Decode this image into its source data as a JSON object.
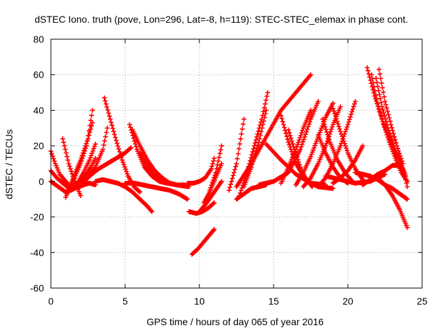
{
  "chart_data": {
    "type": "scatter",
    "title": "dSTEC Iono. truth (pove, Lon=296, Lat=-8, h=119): STEC-STEC_elemax in phase cont.",
    "xlabel": "GPS time / hours of day 065 of year 2016",
    "ylabel": "dSTEC  / TECUs",
    "xlim": [
      0,
      25
    ],
    "ylim": [
      -60,
      80
    ],
    "xticks": [
      0,
      5,
      10,
      15,
      20,
      25
    ],
    "yticks": [
      -60,
      -40,
      -20,
      0,
      20,
      40,
      60,
      80
    ],
    "grid": true,
    "legend": "none",
    "marker": "plus",
    "series_color": "#ff0000",
    "series": [
      {
        "x": [
          0.0,
          0.3,
          0.6,
          1.0,
          1.2
        ],
        "y": [
          17,
          10,
          4,
          0,
          -2
        ]
      },
      {
        "x": [
          0.0,
          0.4,
          0.8,
          1.1,
          1.3
        ],
        "y": [
          6,
          2,
          -1,
          -3,
          -5
        ]
      },
      {
        "x": [
          0.0,
          0.5,
          1.0,
          1.6,
          2.2,
          2.6,
          3.0
        ],
        "y": [
          0,
          -3,
          -6,
          -4,
          -2,
          -1,
          -2
        ]
      },
      {
        "x": [
          0.8,
          1.2,
          1.6,
          2.0
        ],
        "y": [
          24,
          10,
          0,
          -8
        ]
      },
      {
        "x": [
          1.0,
          1.5,
          2.0,
          2.5,
          2.8
        ],
        "y": [
          -9,
          2,
          12,
          24,
          33
        ]
      },
      {
        "x": [
          1.2,
          1.6,
          2.0,
          2.4,
          2.8
        ],
        "y": [
          -6,
          2,
          10,
          20,
          40
        ]
      },
      {
        "x": [
          1.4,
          1.8,
          2.2,
          2.6,
          3.0
        ],
        "y": [
          -5,
          -1,
          5,
          12,
          21
        ]
      },
      {
        "x": [
          1.5,
          1.9,
          2.3,
          2.7,
          3.0
        ],
        "y": [
          -3,
          0,
          3,
          8,
          13
        ]
      },
      {
        "x": [
          2.0,
          2.6,
          3.2,
          3.8,
          4.4,
          5.0,
          5.4
        ],
        "y": [
          -2,
          3,
          7,
          10,
          13,
          16,
          19
        ]
      },
      {
        "x": [
          2.0,
          2.5,
          3.0,
          3.5,
          3.8
        ],
        "y": [
          -2,
          2,
          8,
          18,
          30
        ]
      },
      {
        "x": [
          3.6,
          4.0,
          4.4,
          4.8,
          5.2,
          5.6,
          6.0
        ],
        "y": [
          47,
          35,
          23,
          12,
          3,
          -3,
          -6
        ]
      },
      {
        "x": [
          3.0,
          3.5,
          4.0,
          4.5,
          5.0,
          5.5,
          6.0,
          6.5,
          6.8
        ],
        "y": [
          0,
          1,
          0,
          -1,
          -3,
          -6,
          -10,
          -14,
          -17
        ]
      },
      {
        "x": [
          5.3,
          5.8,
          6.3,
          6.8,
          7.3,
          7.8,
          8.5,
          9.3
        ],
        "y": [
          32,
          18,
          8,
          3,
          0,
          -1,
          -2,
          -3
        ]
      },
      {
        "x": [
          5.5,
          6.0,
          6.5,
          7.0,
          7.5,
          8.0,
          8.5,
          9.0
        ],
        "y": [
          29,
          20,
          12,
          6,
          2,
          -1,
          -2,
          -2
        ]
      },
      {
        "x": [
          5.0,
          5.6,
          6.2,
          6.8,
          7.4,
          8.0,
          8.6,
          9.2
        ],
        "y": [
          -1,
          -1,
          -2,
          -3,
          -4,
          -5,
          -7,
          -10
        ]
      },
      {
        "x": [
          6.0,
          6.5,
          7.0,
          7.5,
          8.0
        ],
        "y": [
          16,
          9,
          4,
          1,
          -1
        ]
      },
      {
        "x": [
          9.3,
          9.8,
          10.2,
          10.6,
          11.0
        ],
        "y": [
          -17,
          -18,
          -17,
          -15,
          -12
        ]
      },
      {
        "x": [
          9.5,
          9.9,
          10.3,
          10.7,
          11.0
        ],
        "y": [
          -41,
          -38,
          -34,
          -30,
          -27
        ]
      },
      {
        "x": [
          9.2,
          9.6,
          10.0,
          10.4,
          10.8,
          11.0
        ],
        "y": [
          -1,
          -1,
          0,
          2,
          7,
          13
        ]
      },
      {
        "x": [
          10.0,
          10.5,
          11.0,
          11.5
        ],
        "y": [
          -17,
          -12,
          -6,
          0
        ]
      },
      {
        "x": [
          10.3,
          10.7,
          11.1,
          11.5
        ],
        "y": [
          -12,
          -6,
          2,
          10
        ]
      },
      {
        "x": [
          10.7,
          11.1,
          11.5
        ],
        "y": [
          -5,
          5,
          20
        ]
      },
      {
        "x": [
          12.5,
          13.0,
          13.5,
          14.0,
          14.5
        ],
        "y": [
          -10,
          -7,
          -4,
          -3,
          -2
        ]
      },
      {
        "x": [
          12.0,
          12.5,
          13.0
        ],
        "y": [
          -5,
          10,
          35
        ]
      },
      {
        "x": [
          12.5,
          13.5,
          14.5,
          15.5,
          16.5,
          17.5
        ],
        "y": [
          -3,
          10,
          25,
          40,
          50,
          60
        ]
      },
      {
        "x": [
          12.7,
          13.2,
          13.7,
          14.2,
          14.6
        ],
        "y": [
          -8,
          5,
          20,
          35,
          50
        ]
      },
      {
        "x": [
          13.0,
          13.5,
          14.0,
          14.5
        ],
        "y": [
          -3,
          8,
          22,
          40
        ]
      },
      {
        "x": [
          14.0,
          15.0,
          16.0,
          16.8,
          17.5,
          18.0
        ],
        "y": [
          -2,
          0,
          5,
          18,
          35,
          45
        ]
      },
      {
        "x": [
          14.5,
          15.5,
          16.5,
          17.5,
          18.5
        ],
        "y": [
          21,
          12,
          4,
          -1,
          -2
        ]
      },
      {
        "x": [
          15.5,
          16.0,
          16.5,
          17.0,
          17.5,
          18.0,
          19.0
        ],
        "y": [
          37,
          22,
          10,
          3,
          -1,
          -3,
          -4
        ]
      },
      {
        "x": [
          16.0,
          16.4,
          16.8,
          17.2,
          17.6
        ],
        "y": [
          29,
          18,
          8,
          1,
          -3
        ]
      },
      {
        "x": [
          15.5,
          16.0,
          16.5,
          17.0,
          17.5
        ],
        "y": [
          -1,
          8,
          18,
          30,
          40
        ]
      },
      {
        "x": [
          16.5,
          17.0,
          17.5,
          18.0,
          18.5,
          19.0
        ],
        "y": [
          -2,
          5,
          14,
          25,
          36,
          44
        ]
      },
      {
        "x": [
          17.0,
          17.5,
          18.0,
          18.5,
          19.0,
          19.5
        ],
        "y": [
          -3,
          2,
          10,
          20,
          32,
          42
        ]
      },
      {
        "x": [
          18.0,
          18.5,
          19.0,
          19.5,
          20.0,
          20.5
        ],
        "y": [
          -3,
          2,
          10,
          20,
          32,
          45
        ]
      },
      {
        "x": [
          18.0,
          18.5,
          19.0,
          19.5,
          20.0
        ],
        "y": [
          26,
          16,
          8,
          2,
          -1
        ]
      },
      {
        "x": [
          18.3,
          18.8,
          19.3,
          19.8,
          20.3
        ],
        "y": [
          35,
          22,
          12,
          5,
          0
        ]
      },
      {
        "x": [
          19.0,
          19.5,
          20.0,
          20.5,
          21.0
        ],
        "y": [
          41,
          28,
          16,
          7,
          1
        ]
      },
      {
        "x": [
          18.5,
          19.5,
          20.5,
          21.5,
          22.0,
          22.5
        ],
        "y": [
          3,
          1,
          -1,
          0,
          2,
          4
        ]
      },
      {
        "x": [
          19.0,
          19.5,
          20.0,
          20.5,
          21.0
        ],
        "y": [
          -1,
          2,
          6,
          12,
          20
        ]
      },
      {
        "x": [
          20.5,
          21.0,
          21.5,
          22.0,
          22.5,
          23.0,
          23.5,
          24.0
        ],
        "y": [
          5,
          4,
          3,
          1,
          -2,
          -4,
          -7,
          -10
        ]
      },
      {
        "x": [
          21.0,
          21.5,
          22.0,
          22.5,
          23.0,
          23.5
        ],
        "y": [
          -2,
          1,
          4,
          6,
          9,
          9
        ]
      },
      {
        "x": [
          21.3,
          21.8,
          22.3,
          22.8,
          23.3,
          23.8,
          24.0
        ],
        "y": [
          64,
          48,
          35,
          24,
          14,
          5,
          -3
        ]
      },
      {
        "x": [
          21.6,
          22.0,
          22.4,
          22.8,
          23.2,
          23.6,
          24.0
        ],
        "y": [
          60,
          44,
          32,
          22,
          13,
          5,
          0
        ]
      },
      {
        "x": [
          21.9,
          22.3,
          22.7,
          23.1,
          23.5,
          23.9
        ],
        "y": [
          58,
          42,
          30,
          20,
          11,
          3
        ]
      },
      {
        "x": [
          22.1,
          22.5,
          22.9,
          23.3,
          23.7
        ],
        "y": [
          63,
          45,
          32,
          20,
          10
        ]
      },
      {
        "x": [
          22.0,
          22.5,
          23.0,
          23.5,
          24.0
        ],
        "y": [
          2,
          -2,
          -8,
          -16,
          -26
        ]
      }
    ]
  }
}
